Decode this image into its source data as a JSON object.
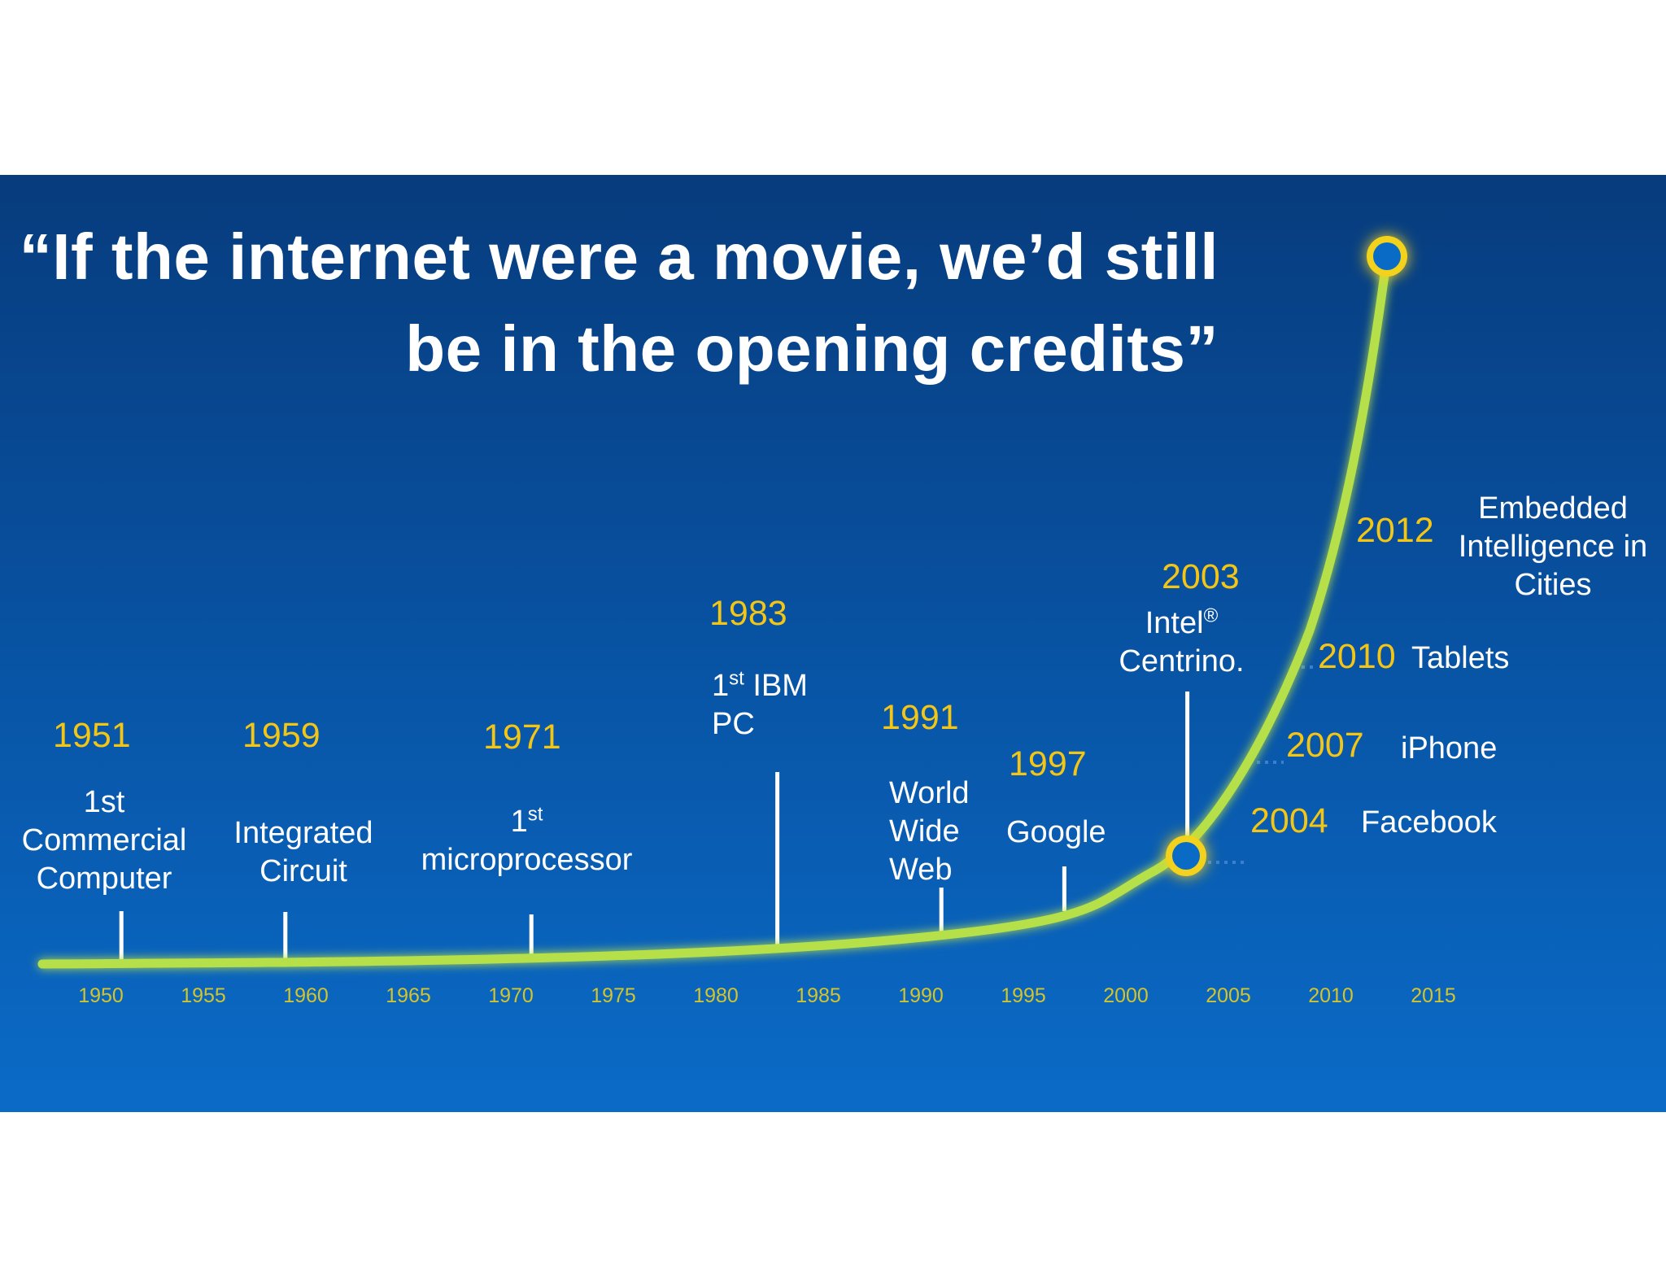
{
  "quote": {
    "line1": "“If the internet were a movie, we’d still",
    "line2": "be in the opening credits”"
  },
  "colors": {
    "background_top": "#073c7d",
    "background_bottom": "#0a6bc7",
    "curve": "#b6e04a",
    "year_text": "#f3c515",
    "axis_text": "#d2c42c",
    "label_text": "#ffffff",
    "dot_fill": "#0a6bc7",
    "dot_ring": "#f2d21a"
  },
  "chart_data": {
    "type": "line",
    "title": "",
    "xlabel": "",
    "ylabel": "",
    "axis_ticks": [
      "1950",
      "1955",
      "1960",
      "1965",
      "1970",
      "1975",
      "1980",
      "1985",
      "1990",
      "1995",
      "2000",
      "2005",
      "2010",
      "2015"
    ],
    "milestones": [
      {
        "year": "1951",
        "label_lines": [
          "1st",
          "Commercial",
          "Computer"
        ]
      },
      {
        "year": "1959",
        "label_lines": [
          "Integrated",
          "Circuit"
        ]
      },
      {
        "year": "1971",
        "label_main": "1",
        "label_sup": "st",
        "label_line2": "microprocessor"
      },
      {
        "year": "1983",
        "label_main": "1",
        "label_sup": "st",
        "label_rest": " IBM",
        "label_line2": "PC"
      },
      {
        "year": "1991",
        "label_lines": [
          "World",
          "Wide",
          "Web"
        ]
      },
      {
        "year": "1997",
        "label_lines": [
          "Google"
        ]
      },
      {
        "year": "2003",
        "label_main": "Intel",
        "label_sup": "®",
        "label_line2": "Centrino."
      },
      {
        "year": "2004",
        "label_lines": [
          "Facebook"
        ]
      },
      {
        "year": "2007",
        "label_lines": [
          "iPhone"
        ]
      },
      {
        "year": "2010",
        "label_lines": [
          "Tablets"
        ]
      },
      {
        "year": "2012",
        "label_lines": [
          "Embedded",
          "Intelligence in",
          "Cities"
        ]
      }
    ]
  }
}
